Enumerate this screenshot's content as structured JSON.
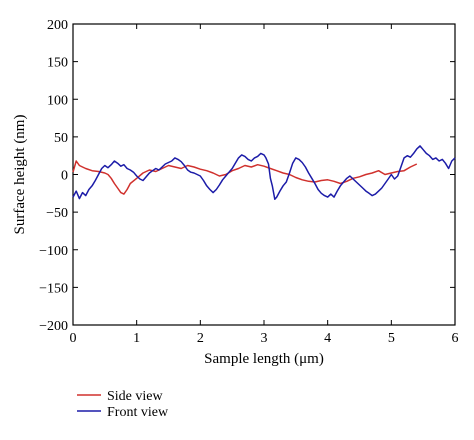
{
  "chart_data": {
    "type": "line",
    "xlabel": "Sample length (μm)",
    "ylabel": "Surface height (nm)",
    "xlim": [
      0,
      6
    ],
    "ylim": [
      -200,
      200
    ],
    "xticks": [
      0,
      1,
      2,
      3,
      4,
      5,
      6
    ],
    "yticks": [
      200,
      150,
      100,
      50,
      0,
      -50,
      -100,
      -150,
      -200
    ],
    "ytick_labels": [
      "200",
      "150",
      "100",
      "50",
      "0",
      "−50",
      "−100",
      "−150",
      "−200"
    ],
    "grid": false,
    "legend_placement": "bottom-left, below plot",
    "series": [
      {
        "name": "Side view",
        "color": "#d0312d",
        "points": [
          [
            0.0,
            3
          ],
          [
            0.05,
            18
          ],
          [
            0.1,
            12
          ],
          [
            0.15,
            10
          ],
          [
            0.2,
            8
          ],
          [
            0.3,
            5
          ],
          [
            0.4,
            4
          ],
          [
            0.5,
            2
          ],
          [
            0.55,
            0
          ],
          [
            0.6,
            -5
          ],
          [
            0.65,
            -12
          ],
          [
            0.7,
            -18
          ],
          [
            0.75,
            -24
          ],
          [
            0.8,
            -26
          ],
          [
            0.85,
            -20
          ],
          [
            0.9,
            -12
          ],
          [
            1.0,
            -5
          ],
          [
            1.1,
            2
          ],
          [
            1.2,
            6
          ],
          [
            1.3,
            4
          ],
          [
            1.4,
            8
          ],
          [
            1.5,
            12
          ],
          [
            1.6,
            10
          ],
          [
            1.7,
            8
          ],
          [
            1.8,
            12
          ],
          [
            1.9,
            10
          ],
          [
            2.0,
            7
          ],
          [
            2.1,
            5
          ],
          [
            2.2,
            2
          ],
          [
            2.3,
            -2
          ],
          [
            2.4,
            0
          ],
          [
            2.5,
            5
          ],
          [
            2.6,
            8
          ],
          [
            2.7,
            12
          ],
          [
            2.8,
            10
          ],
          [
            2.9,
            13
          ],
          [
            3.0,
            11
          ],
          [
            3.1,
            8
          ],
          [
            3.2,
            5
          ],
          [
            3.3,
            2
          ],
          [
            3.4,
            0
          ],
          [
            3.5,
            -4
          ],
          [
            3.6,
            -7
          ],
          [
            3.7,
            -9
          ],
          [
            3.8,
            -10
          ],
          [
            3.9,
            -8
          ],
          [
            4.0,
            -7
          ],
          [
            4.1,
            -9
          ],
          [
            4.2,
            -12
          ],
          [
            4.3,
            -9
          ],
          [
            4.4,
            -5
          ],
          [
            4.5,
            -3
          ],
          [
            4.6,
            0
          ],
          [
            4.7,
            2
          ],
          [
            4.8,
            5
          ],
          [
            4.9,
            0
          ],
          [
            5.0,
            2
          ],
          [
            5.1,
            4
          ],
          [
            5.2,
            5
          ],
          [
            5.3,
            10
          ],
          [
            5.4,
            14
          ]
        ]
      },
      {
        "name": "Front view",
        "color": "#1c1ca8",
        "points": [
          [
            0.0,
            -30
          ],
          [
            0.05,
            -22
          ],
          [
            0.1,
            -32
          ],
          [
            0.15,
            -24
          ],
          [
            0.2,
            -28
          ],
          [
            0.25,
            -20
          ],
          [
            0.3,
            -15
          ],
          [
            0.35,
            -8
          ],
          [
            0.4,
            0
          ],
          [
            0.45,
            8
          ],
          [
            0.5,
            12
          ],
          [
            0.55,
            9
          ],
          [
            0.6,
            13
          ],
          [
            0.65,
            18
          ],
          [
            0.7,
            15
          ],
          [
            0.75,
            11
          ],
          [
            0.8,
            13
          ],
          [
            0.85,
            8
          ],
          [
            0.9,
            6
          ],
          [
            0.95,
            3
          ],
          [
            1.0,
            -2
          ],
          [
            1.05,
            -6
          ],
          [
            1.1,
            -8
          ],
          [
            1.15,
            -3
          ],
          [
            1.2,
            2
          ],
          [
            1.25,
            5
          ],
          [
            1.3,
            8
          ],
          [
            1.35,
            6
          ],
          [
            1.4,
            10
          ],
          [
            1.45,
            14
          ],
          [
            1.5,
            16
          ],
          [
            1.55,
            18
          ],
          [
            1.6,
            22
          ],
          [
            1.65,
            20
          ],
          [
            1.7,
            17
          ],
          [
            1.75,
            12
          ],
          [
            1.8,
            6
          ],
          [
            1.85,
            3
          ],
          [
            1.9,
            2
          ],
          [
            1.95,
            0
          ],
          [
            2.0,
            -2
          ],
          [
            2.05,
            -8
          ],
          [
            2.1,
            -15
          ],
          [
            2.15,
            -20
          ],
          [
            2.2,
            -24
          ],
          [
            2.25,
            -20
          ],
          [
            2.3,
            -14
          ],
          [
            2.35,
            -7
          ],
          [
            2.4,
            -2
          ],
          [
            2.45,
            3
          ],
          [
            2.5,
            8
          ],
          [
            2.55,
            15
          ],
          [
            2.6,
            22
          ],
          [
            2.65,
            26
          ],
          [
            2.7,
            24
          ],
          [
            2.75,
            20
          ],
          [
            2.8,
            18
          ],
          [
            2.85,
            22
          ],
          [
            2.9,
            24
          ],
          [
            2.95,
            28
          ],
          [
            3.0,
            26
          ],
          [
            3.03,
            22
          ],
          [
            3.07,
            14
          ],
          [
            3.1,
            -5
          ],
          [
            3.13,
            -15
          ],
          [
            3.17,
            -33
          ],
          [
            3.2,
            -30
          ],
          [
            3.25,
            -22
          ],
          [
            3.3,
            -15
          ],
          [
            3.35,
            -10
          ],
          [
            3.4,
            2
          ],
          [
            3.45,
            15
          ],
          [
            3.5,
            22
          ],
          [
            3.55,
            20
          ],
          [
            3.6,
            16
          ],
          [
            3.65,
            10
          ],
          [
            3.7,
            2
          ],
          [
            3.75,
            -5
          ],
          [
            3.8,
            -12
          ],
          [
            3.85,
            -20
          ],
          [
            3.9,
            -25
          ],
          [
            3.95,
            -28
          ],
          [
            4.0,
            -30
          ],
          [
            4.05,
            -26
          ],
          [
            4.1,
            -30
          ],
          [
            4.15,
            -22
          ],
          [
            4.2,
            -15
          ],
          [
            4.25,
            -10
          ],
          [
            4.3,
            -5
          ],
          [
            4.35,
            -2
          ],
          [
            4.4,
            -6
          ],
          [
            4.45,
            -10
          ],
          [
            4.5,
            -14
          ],
          [
            4.55,
            -18
          ],
          [
            4.6,
            -22
          ],
          [
            4.65,
            -25
          ],
          [
            4.7,
            -28
          ],
          [
            4.75,
            -26
          ],
          [
            4.8,
            -22
          ],
          [
            4.85,
            -18
          ],
          [
            4.9,
            -12
          ],
          [
            4.95,
            -6
          ],
          [
            5.0,
            0
          ],
          [
            5.05,
            -6
          ],
          [
            5.1,
            -2
          ],
          [
            5.15,
            10
          ],
          [
            5.2,
            22
          ],
          [
            5.25,
            25
          ],
          [
            5.3,
            23
          ],
          [
            5.35,
            28
          ],
          [
            5.4,
            34
          ],
          [
            5.45,
            38
          ],
          [
            5.5,
            33
          ],
          [
            5.55,
            28
          ],
          [
            5.6,
            25
          ],
          [
            5.65,
            20
          ],
          [
            5.7,
            22
          ],
          [
            5.75,
            18
          ],
          [
            5.8,
            20
          ],
          [
            5.85,
            15
          ],
          [
            5.9,
            8
          ],
          [
            5.95,
            18
          ],
          [
            6.0,
            22
          ]
        ]
      }
    ]
  }
}
